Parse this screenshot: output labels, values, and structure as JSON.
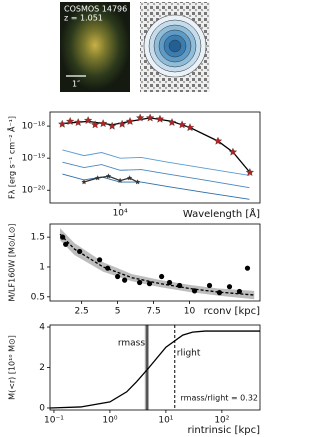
{
  "cutout": {
    "label": "COSMOS 14796",
    "redshift": "z = 1.051",
    "scale": "1″"
  },
  "chart_data": [
    {
      "type": "line",
      "xlabel": "Wavelength [Å]",
      "ylabel": "Fλ [erg s⁻¹ cm⁻² Å⁻¹]",
      "xscale": "log",
      "yscale": "log",
      "xlim": [
        2600,
        147000
      ],
      "ylim": [
        4e-21,
        2.75e-18
      ],
      "xticks": [
        {
          "value": 10000,
          "label": "10⁴"
        }
      ],
      "yticks": [
        {
          "value": 1e-18,
          "label": "10⁻¹⁸"
        },
        {
          "value": 1e-19,
          "label": "10⁻¹⁹"
        },
        {
          "value": 1e-20,
          "label": "10⁻²⁰"
        }
      ],
      "series": [
        {
          "color": "#5b9bd5",
          "x": [
            3300,
            5000,
            7000,
            10000,
            15000,
            25000,
            50000,
            120000
          ],
          "values": [
            1.8e-19,
            1.2e-19,
            1.5e-19,
            1e-19,
            1.05e-19,
            7.5e-20,
            4.9e-20,
            2.9e-20
          ]
        },
        {
          "color": "#4a86c0",
          "x": [
            3300,
            5000,
            7000,
            10000,
            15000,
            25000,
            50000,
            120000
          ],
          "values": [
            7.5e-20,
            5.1e-20,
            6.3e-20,
            4.2e-20,
            4.4e-20,
            3.2e-20,
            2.1e-20,
            1.2e-20
          ]
        },
        {
          "color": "#2f6ea8",
          "x": [
            3300,
            5000,
            7000,
            10000,
            15000,
            25000,
            50000,
            120000
          ],
          "values": [
            3.2e-20,
            2.1e-20,
            2.6e-20,
            1.8e-20,
            1.8e-20,
            1.3e-20,
            8.6e-21,
            5.2e-21
          ]
        },
        {
          "color": "#333333",
          "marker": "star",
          "line": true,
          "x": [
            5000,
            6500,
            8000,
            10000,
            12000,
            14000
          ],
          "values": [
            1.8e-20,
            2.4e-20,
            2.75e-20,
            2e-20,
            2.4e-20,
            1.8e-20
          ]
        },
        {
          "color": "#000000",
          "line": true,
          "x": [
            3290,
            5410,
            8580,
            12100,
            17800,
            27100,
            38300,
            65600,
            87400,
            121000
          ],
          "values": [
            1.2e-18,
            1.4e-18,
            1.1e-18,
            1.4e-18,
            1.8e-18,
            1.4e-18,
            9e-19,
            3.4e-19,
            1.55e-19,
            3.6e-20
          ]
        },
        {
          "color": "#b22222",
          "marker": "star",
          "line": false,
          "x": [
            3290,
            3830,
            4470,
            5410,
            6190,
            7220,
            8580,
            10400,
            12100,
            14700,
            17800,
            21500,
            27100,
            32900,
            38300,
            65600,
            87400,
            121000
          ],
          "values": [
            1.15e-18,
            1.4e-18,
            1.3e-18,
            1.5e-18,
            1.1e-18,
            1.2e-18,
            1e-18,
            1.15e-18,
            1.4e-18,
            1.8e-18,
            1.8e-18,
            1.65e-18,
            1.3e-18,
            1.1e-18,
            9e-19,
            3.4e-19,
            1.55e-19,
            3.6e-20
          ]
        }
      ]
    },
    {
      "type": "scatter",
      "xlabel": "rconv [kpc]",
      "ylabel": "M/LF160W [M⊙/L⊙]",
      "xlim": [
        0.3,
        14.9
      ],
      "ylim": [
        0.43,
        1.72
      ],
      "xticks": [
        2.5,
        5,
        7.5,
        10
      ],
      "yticks": [
        0.5,
        1.0,
        1.5
      ],
      "band": {
        "color": "#bdbdbd",
        "x": [
          1,
          2,
          4,
          6,
          8,
          10,
          12,
          14.5
        ],
        "low": [
          1.45,
          1.2,
          0.92,
          0.76,
          0.66,
          0.58,
          0.52,
          0.46
        ],
        "high": [
          1.65,
          1.4,
          1.08,
          0.88,
          0.78,
          0.7,
          0.64,
          0.6
        ]
      },
      "series": [
        {
          "color": "#000000",
          "line": true,
          "dashed": true,
          "x": [
            1,
            2,
            4,
            6,
            8,
            10,
            12,
            14.5
          ],
          "values": [
            1.55,
            1.3,
            1.0,
            0.82,
            0.72,
            0.64,
            0.58,
            0.53
          ]
        },
        {
          "color": "#000000",
          "marker": "circle",
          "line": false,
          "x": [
            1.18,
            1.39,
            2.36,
            3.75,
            4.31,
            5.0,
            5.49,
            6.53,
            7.22,
            8.06,
            8.61,
            9.31,
            10.35,
            11.39,
            12.08,
            12.78,
            13.47,
            14.03
          ],
          "values": [
            1.5,
            1.38,
            1.26,
            1.12,
            0.98,
            0.84,
            0.78,
            0.74,
            0.72,
            0.84,
            0.74,
            0.69,
            0.6,
            0.69,
            0.57,
            0.67,
            0.59,
            0.98
          ]
        }
      ]
    },
    {
      "type": "line",
      "xlabel": "rintrinsic [kpc]",
      "ylabel": "M(<r) [10¹⁰ M⊙]",
      "xscale": "log",
      "xlim": [
        0.085,
        480
      ],
      "ylim": [
        -0.1,
        4.1
      ],
      "xticks": [
        {
          "value": 0.1,
          "label": "10⁻¹"
        },
        {
          "value": 1,
          "label": "10⁰"
        },
        {
          "value": 10,
          "label": "10¹"
        },
        {
          "value": 100,
          "label": "10²"
        }
      ],
      "yticks": [
        0,
        2,
        4
      ],
      "series": [
        {
          "color": "#000000",
          "line": true,
          "x": [
            0.085,
            0.3,
            1,
            2,
            3,
            5,
            10,
            20,
            30,
            50,
            100,
            480
          ],
          "values": [
            0,
            0.05,
            0.3,
            0.8,
            1.3,
            2.0,
            3.0,
            3.6,
            3.75,
            3.8,
            3.8,
            3.8
          ]
        }
      ],
      "vlines": [
        {
          "value": 4.6,
          "band": [
            4.2,
            5.0
          ],
          "label": "rmass",
          "dashed": false
        },
        {
          "value": 14.4,
          "label": "rlight",
          "dashed": true
        }
      ],
      "annotation": "rmass/rlight = 0.32"
    }
  ]
}
